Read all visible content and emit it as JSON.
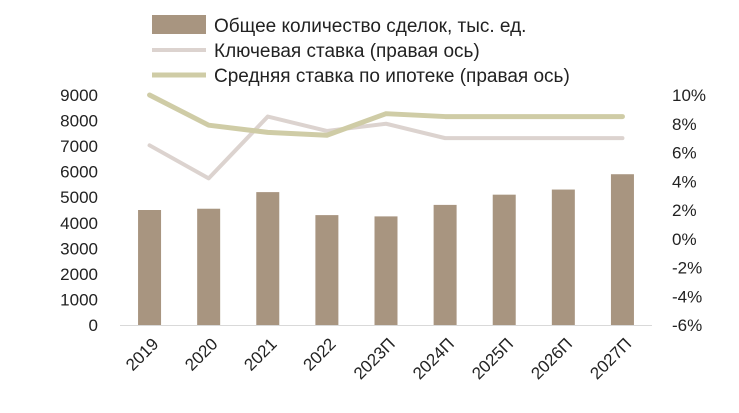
{
  "chart_data": {
    "type": "bar",
    "title": "",
    "xlabel": "",
    "ylabel": "",
    "ylabel_right": "",
    "categories": [
      "2019",
      "2020",
      "2021",
      "2022",
      "2023П",
      "2024П",
      "2025П",
      "2026П",
      "2027П"
    ],
    "ylim": [
      0,
      9000
    ],
    "yticks": [
      "9000",
      "8000",
      "7000",
      "6000",
      "5000",
      "4000",
      "3000",
      "2000",
      "1000",
      "0"
    ],
    "y2lim": [
      -6,
      10
    ],
    "y2ticks": [
      "10%",
      "8%",
      "6%",
      "4%",
      "2%",
      "0%",
      "-2%",
      "-4%",
      "-6%"
    ],
    "grid": false,
    "legend_position": "top",
    "series": [
      {
        "name": "Общее количество сделок, тыс. ед.",
        "kind": "bar",
        "axis": "left",
        "color": "#a89580",
        "values": [
          4500,
          4550,
          5200,
          4300,
          4250,
          4700,
          5100,
          5300,
          5900
        ]
      },
      {
        "name": "Ключевая ставка (правая ось)",
        "kind": "line",
        "axis": "right",
        "color": "#dcd3cf",
        "values": [
          6.5,
          4.2,
          8.5,
          7.5,
          8.0,
          7.0,
          7.0,
          7.0,
          7.0
        ]
      },
      {
        "name": "Средняя ставка по ипотеке (правая ось)",
        "kind": "line",
        "axis": "right",
        "color": "#cfcca6",
        "values": [
          10.0,
          7.9,
          7.4,
          7.2,
          8.7,
          8.5,
          8.5,
          8.5,
          8.5
        ]
      }
    ]
  }
}
